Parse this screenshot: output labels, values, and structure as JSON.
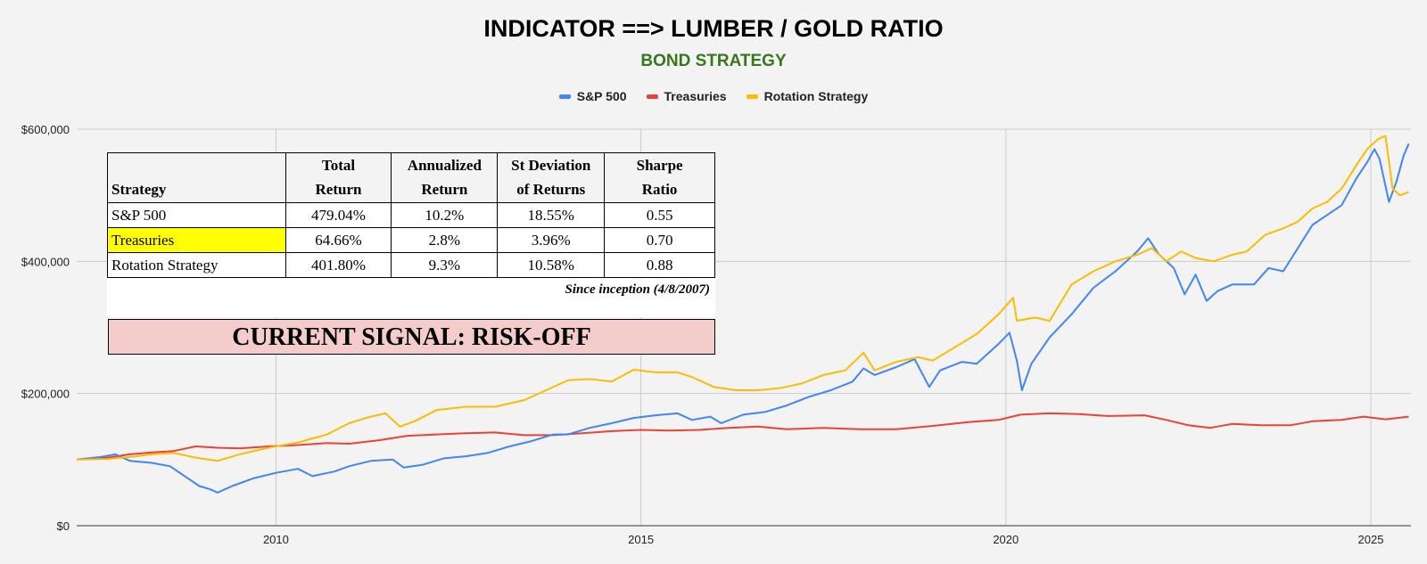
{
  "header": {
    "title": "INDICATOR ==> LUMBER / GOLD RATIO",
    "subtitle": "BOND STRATEGY"
  },
  "legend": [
    {
      "name": "S&P 500",
      "color": "#4285f4"
    },
    {
      "name": "Treasuries",
      "color": "#ea4335"
    },
    {
      "name": "Rotation Strategy",
      "color": "#fbbc04"
    }
  ],
  "chart_data": {
    "type": "line",
    "title": "INDICATOR ==> LUMBER / GOLD RATIO",
    "subtitle": "BOND STRATEGY",
    "xlim": [
      2007.27,
      2025.55
    ],
    "ylim": [
      0,
      600000
    ],
    "x_ticks": [
      2010,
      2015,
      2020,
      2025
    ],
    "x_tick_labels": [
      "2010",
      "2015",
      "2020",
      "2025"
    ],
    "y_ticks": [
      0,
      200000,
      400000,
      600000
    ],
    "y_tick_labels": [
      "$0",
      "$200,000",
      "$400,000",
      "$600,000"
    ],
    "grid": true,
    "legend_position": "top",
    "series": [
      {
        "name": "S&P 500",
        "color": "#4285f4",
        "points": [
          [
            2007.27,
            100000
          ],
          [
            2007.6,
            104000
          ],
          [
            2007.8,
            108000
          ],
          [
            2008.0,
            98000
          ],
          [
            2008.3,
            95000
          ],
          [
            2008.55,
            90000
          ],
          [
            2008.75,
            75000
          ],
          [
            2008.95,
            60000
          ],
          [
            2009.1,
            55000
          ],
          [
            2009.2,
            50000
          ],
          [
            2009.4,
            60000
          ],
          [
            2009.7,
            72000
          ],
          [
            2010.0,
            80000
          ],
          [
            2010.3,
            86000
          ],
          [
            2010.5,
            75000
          ],
          [
            2010.8,
            82000
          ],
          [
            2011.0,
            90000
          ],
          [
            2011.3,
            98000
          ],
          [
            2011.6,
            100000
          ],
          [
            2011.75,
            88000
          ],
          [
            2012.0,
            92000
          ],
          [
            2012.3,
            102000
          ],
          [
            2012.6,
            105000
          ],
          [
            2012.9,
            110000
          ],
          [
            2013.2,
            120000
          ],
          [
            2013.5,
            128000
          ],
          [
            2013.8,
            138000
          ],
          [
            2014.0,
            138000
          ],
          [
            2014.3,
            148000
          ],
          [
            2014.6,
            155000
          ],
          [
            2014.9,
            163000
          ],
          [
            2015.2,
            167000
          ],
          [
            2015.5,
            170000
          ],
          [
            2015.7,
            160000
          ],
          [
            2015.95,
            165000
          ],
          [
            2016.1,
            155000
          ],
          [
            2016.4,
            168000
          ],
          [
            2016.7,
            172000
          ],
          [
            2017.0,
            182000
          ],
          [
            2017.3,
            195000
          ],
          [
            2017.6,
            205000
          ],
          [
            2017.9,
            218000
          ],
          [
            2018.05,
            238000
          ],
          [
            2018.2,
            228000
          ],
          [
            2018.5,
            240000
          ],
          [
            2018.75,
            252000
          ],
          [
            2018.95,
            210000
          ],
          [
            2019.1,
            235000
          ],
          [
            2019.4,
            248000
          ],
          [
            2019.6,
            245000
          ],
          [
            2019.9,
            275000
          ],
          [
            2020.05,
            292000
          ],
          [
            2020.15,
            250000
          ],
          [
            2020.22,
            205000
          ],
          [
            2020.35,
            245000
          ],
          [
            2020.6,
            285000
          ],
          [
            2020.9,
            320000
          ],
          [
            2021.2,
            360000
          ],
          [
            2021.5,
            385000
          ],
          [
            2021.8,
            415000
          ],
          [
            2021.95,
            435000
          ],
          [
            2022.1,
            410000
          ],
          [
            2022.3,
            390000
          ],
          [
            2022.45,
            350000
          ],
          [
            2022.6,
            380000
          ],
          [
            2022.75,
            340000
          ],
          [
            2022.9,
            355000
          ],
          [
            2023.1,
            365000
          ],
          [
            2023.4,
            365000
          ],
          [
            2023.6,
            390000
          ],
          [
            2023.8,
            385000
          ],
          [
            2024.0,
            420000
          ],
          [
            2024.2,
            455000
          ],
          [
            2024.4,
            470000
          ],
          [
            2024.6,
            485000
          ],
          [
            2024.8,
            525000
          ],
          [
            2024.95,
            550000
          ],
          [
            2025.05,
            570000
          ],
          [
            2025.12,
            555000
          ],
          [
            2025.25,
            490000
          ],
          [
            2025.35,
            520000
          ],
          [
            2025.45,
            560000
          ],
          [
            2025.52,
            578000
          ]
        ]
      },
      {
        "name": "Treasuries",
        "color": "#ea4335",
        "points": [
          [
            2007.27,
            100000
          ],
          [
            2007.7,
            103000
          ],
          [
            2008.0,
            108000
          ],
          [
            2008.3,
            111000
          ],
          [
            2008.6,
            113000
          ],
          [
            2008.9,
            120000
          ],
          [
            2009.2,
            118000
          ],
          [
            2009.5,
            117000
          ],
          [
            2009.9,
            120000
          ],
          [
            2010.3,
            122000
          ],
          [
            2010.7,
            125000
          ],
          [
            2011.0,
            124000
          ],
          [
            2011.4,
            129000
          ],
          [
            2011.8,
            136000
          ],
          [
            2012.2,
            138000
          ],
          [
            2012.6,
            140000
          ],
          [
            2013.0,
            141000
          ],
          [
            2013.4,
            137000
          ],
          [
            2013.8,
            137000
          ],
          [
            2014.2,
            140000
          ],
          [
            2014.6,
            143000
          ],
          [
            2015.0,
            145000
          ],
          [
            2015.4,
            144000
          ],
          [
            2015.8,
            145000
          ],
          [
            2016.2,
            148000
          ],
          [
            2016.6,
            150000
          ],
          [
            2017.0,
            146000
          ],
          [
            2017.5,
            148000
          ],
          [
            2018.0,
            146000
          ],
          [
            2018.5,
            146000
          ],
          [
            2019.0,
            151000
          ],
          [
            2019.5,
            157000
          ],
          [
            2019.9,
            160000
          ],
          [
            2020.2,
            168000
          ],
          [
            2020.6,
            170000
          ],
          [
            2021.0,
            169000
          ],
          [
            2021.4,
            166000
          ],
          [
            2021.9,
            167000
          ],
          [
            2022.2,
            160000
          ],
          [
            2022.5,
            152000
          ],
          [
            2022.8,
            148000
          ],
          [
            2023.1,
            154000
          ],
          [
            2023.5,
            152000
          ],
          [
            2023.9,
            152000
          ],
          [
            2024.2,
            158000
          ],
          [
            2024.6,
            160000
          ],
          [
            2024.9,
            165000
          ],
          [
            2025.2,
            161000
          ],
          [
            2025.52,
            165000
          ]
        ]
      },
      {
        "name": "Rotation Strategy",
        "color": "#fbbc04",
        "points": [
          [
            2007.27,
            100000
          ],
          [
            2007.7,
            101000
          ],
          [
            2008.0,
            104000
          ],
          [
            2008.3,
            108000
          ],
          [
            2008.6,
            110000
          ],
          [
            2008.9,
            103000
          ],
          [
            2009.2,
            98000
          ],
          [
            2009.5,
            108000
          ],
          [
            2009.9,
            118000
          ],
          [
            2010.3,
            126000
          ],
          [
            2010.7,
            138000
          ],
          [
            2011.0,
            155000
          ],
          [
            2011.3,
            165000
          ],
          [
            2011.5,
            170000
          ],
          [
            2011.7,
            150000
          ],
          [
            2011.9,
            158000
          ],
          [
            2012.2,
            175000
          ],
          [
            2012.6,
            180000
          ],
          [
            2013.0,
            180000
          ],
          [
            2013.4,
            190000
          ],
          [
            2013.7,
            205000
          ],
          [
            2014.0,
            220000
          ],
          [
            2014.3,
            222000
          ],
          [
            2014.6,
            218000
          ],
          [
            2014.9,
            236000
          ],
          [
            2015.2,
            232000
          ],
          [
            2015.5,
            232000
          ],
          [
            2015.7,
            225000
          ],
          [
            2016.0,
            210000
          ],
          [
            2016.3,
            205000
          ],
          [
            2016.6,
            205000
          ],
          [
            2016.9,
            208000
          ],
          [
            2017.2,
            215000
          ],
          [
            2017.5,
            228000
          ],
          [
            2017.8,
            235000
          ],
          [
            2018.05,
            262000
          ],
          [
            2018.2,
            235000
          ],
          [
            2018.5,
            248000
          ],
          [
            2018.8,
            255000
          ],
          [
            2019.0,
            250000
          ],
          [
            2019.3,
            270000
          ],
          [
            2019.6,
            290000
          ],
          [
            2019.9,
            320000
          ],
          [
            2020.1,
            345000
          ],
          [
            2020.15,
            310000
          ],
          [
            2020.4,
            315000
          ],
          [
            2020.6,
            310000
          ],
          [
            2020.9,
            365000
          ],
          [
            2021.2,
            385000
          ],
          [
            2021.5,
            400000
          ],
          [
            2021.8,
            410000
          ],
          [
            2022.0,
            420000
          ],
          [
            2022.2,
            400000
          ],
          [
            2022.4,
            415000
          ],
          [
            2022.6,
            405000
          ],
          [
            2022.85,
            400000
          ],
          [
            2023.1,
            410000
          ],
          [
            2023.3,
            415000
          ],
          [
            2023.55,
            440000
          ],
          [
            2023.8,
            450000
          ],
          [
            2024.0,
            460000
          ],
          [
            2024.2,
            480000
          ],
          [
            2024.4,
            490000
          ],
          [
            2024.6,
            510000
          ],
          [
            2024.8,
            545000
          ],
          [
            2024.95,
            570000
          ],
          [
            2025.1,
            585000
          ],
          [
            2025.2,
            590000
          ],
          [
            2025.3,
            510000
          ],
          [
            2025.4,
            500000
          ],
          [
            2025.52,
            505000
          ]
        ]
      }
    ]
  },
  "stats_table": {
    "headers": [
      {
        "line1": "",
        "line2": "Strategy"
      },
      {
        "line1": "Total",
        "line2": "Return"
      },
      {
        "line1": "Annualized",
        "line2": "Return"
      },
      {
        "line1": "St Deviation",
        "line2": "of Returns"
      },
      {
        "line1": "Sharpe",
        "line2": "Ratio"
      }
    ],
    "rows": [
      {
        "name": "S&P 500",
        "total_return": "479.04%",
        "annualized_return": "10.2%",
        "st_dev": "18.55%",
        "sharpe": "0.55"
      },
      {
        "name": "Treasuries",
        "total_return": "64.66%",
        "annualized_return": "2.8%",
        "st_dev": "3.96%",
        "sharpe": "0.70"
      },
      {
        "name": "Rotation Strategy",
        "total_return": "401.80%",
        "annualized_return": "9.3%",
        "st_dev": "10.58%",
        "sharpe": "0.88"
      }
    ],
    "note": "Since inception (4/8/2007)"
  },
  "signal": {
    "text": "CURRENT SIGNAL: RISK-OFF",
    "background": "#f4cccc"
  },
  "highlight_color": "#ffff00"
}
